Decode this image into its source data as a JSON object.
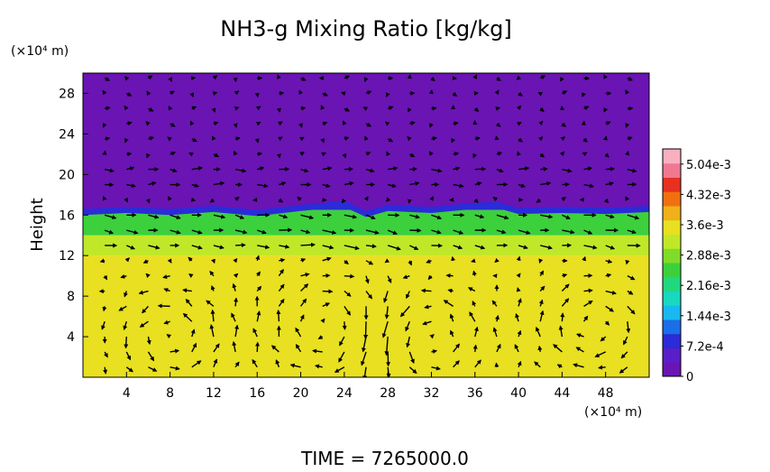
{
  "chart_data": {
    "type": "heatmap",
    "title": "NH3-g Mixing Ratio [kg/kg]",
    "ylabel": "Height",
    "x_unit_label": "(×10⁴ m)",
    "y_unit_label": "(×10⁴ m)",
    "footer": "TIME = 7265000.0",
    "xlim": [
      0,
      52
    ],
    "ylim": [
      0,
      30
    ],
    "x_ticks": [
      4,
      8,
      12,
      16,
      20,
      24,
      28,
      32,
      36,
      40,
      44,
      48
    ],
    "y_ticks": [
      4,
      8,
      12,
      16,
      20,
      24,
      28
    ],
    "colorbar": {
      "min": 0,
      "max": 0.0054,
      "tick_values": [
        0,
        0.00072,
        0.00144,
        0.00216,
        0.00288,
        0.0036,
        0.00432,
        0.00504
      ],
      "tick_labels": [
        "0",
        "7.2e-4",
        "1.44e-3",
        "2.16e-3",
        "2.88e-3",
        "3.6e-3",
        "4.32e-3",
        "5.04e-3"
      ],
      "colors": [
        "#6a14b4",
        "#5a1ec8",
        "#2b2bd8",
        "#1a6ee8",
        "#18b8f0",
        "#18d8c0",
        "#20d880",
        "#3cd03c",
        "#80dc28",
        "#c0e828",
        "#e8e020",
        "#f0b018",
        "#f07010",
        "#e83020",
        "#f07890",
        "#f8b0c0"
      ]
    },
    "field_layers": [
      {
        "from_height": 0,
        "to_height": 12,
        "value": 0.0037
      },
      {
        "from_height": 12,
        "to_height": 14,
        "value": 0.0031
      },
      {
        "from_height": 14,
        "to_height": 16.5,
        "value": 0.0026
      },
      {
        "from_height": 16.5,
        "to_height": 17,
        "value": 0.0009
      },
      {
        "from_height": 17,
        "to_height": 30,
        "value": 0
      }
    ],
    "boundary_height_profile": {
      "x": [
        0,
        4,
        8,
        12,
        16,
        20,
        22,
        24,
        26,
        28,
        32,
        36,
        38,
        40,
        44,
        48,
        52
      ],
      "height": [
        16.6,
        16.8,
        16.6,
        16.9,
        16.5,
        17.0,
        17.2,
        17.4,
        16.4,
        17.0,
        16.8,
        17.2,
        17.3,
        16.7,
        16.8,
        16.7,
        16.9
      ]
    },
    "vector_field": {
      "x_start": 2,
      "x_step": 2,
      "y_start": 1,
      "y_step": 1.5,
      "cells": [
        {
          "x": 8,
          "y": 4,
          "r": 3.5,
          "sense": 1
        },
        {
          "x": 23,
          "y": 5,
          "r": 4.5,
          "sense": -1
        },
        {
          "x": 31,
          "y": 4,
          "r": 4,
          "sense": 1
        },
        {
          "x": 47,
          "y": 5,
          "r": 3.5,
          "sense": -1
        }
      ],
      "upper_wind": [
        {
          "from_height": 18,
          "to_height": 21,
          "u": 0.8,
          "v": 0
        },
        {
          "from_height": 13,
          "to_height": 16.5,
          "u": 1,
          "v": -0.2
        },
        {
          "from_height": 21,
          "to_height": 30,
          "u": 0.15,
          "v": 0
        }
      ]
    }
  }
}
